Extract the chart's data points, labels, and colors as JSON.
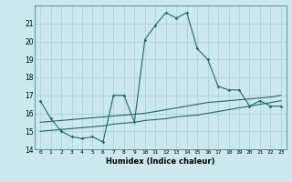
{
  "title": "",
  "xlabel": "Humidex (Indice chaleur)",
  "ylabel": "",
  "background_color": "#cce8ec",
  "grid_color": "#aacdd4",
  "line_color": "#1a6b6b",
  "xlim": [
    -0.5,
    23.5
  ],
  "ylim": [
    14,
    22
  ],
  "yticks": [
    14,
    15,
    16,
    17,
    18,
    19,
    20,
    21
  ],
  "xticks": [
    0,
    1,
    2,
    3,
    4,
    5,
    6,
    7,
    8,
    9,
    10,
    11,
    12,
    13,
    14,
    15,
    16,
    17,
    18,
    19,
    20,
    21,
    22,
    23
  ],
  "series1_x": [
    0,
    1,
    2,
    3,
    4,
    5,
    6,
    7,
    8,
    9,
    10,
    11,
    12,
    13,
    14,
    15,
    16,
    17,
    18,
    19,
    20,
    21,
    22,
    23
  ],
  "series1_y": [
    16.7,
    15.7,
    15.0,
    14.7,
    14.6,
    14.7,
    14.4,
    17.0,
    17.0,
    15.5,
    20.1,
    20.9,
    21.6,
    21.3,
    21.6,
    19.6,
    19.0,
    17.5,
    17.3,
    17.3,
    16.4,
    16.7,
    16.4,
    16.4
  ],
  "series2_x": [
    0,
    1,
    2,
    3,
    4,
    5,
    6,
    7,
    8,
    9,
    10,
    11,
    12,
    13,
    14,
    15,
    16,
    17,
    18,
    19,
    20,
    21,
    22,
    23
  ],
  "series2_y": [
    15.0,
    15.05,
    15.1,
    15.15,
    15.2,
    15.25,
    15.3,
    15.4,
    15.45,
    15.5,
    15.6,
    15.65,
    15.7,
    15.8,
    15.85,
    15.9,
    16.0,
    16.1,
    16.2,
    16.3,
    16.4,
    16.5,
    16.6,
    16.7
  ],
  "series3_x": [
    0,
    1,
    2,
    3,
    4,
    5,
    6,
    7,
    8,
    9,
    10,
    11,
    12,
    13,
    14,
    15,
    16,
    17,
    18,
    19,
    20,
    21,
    22,
    23
  ],
  "series3_y": [
    15.5,
    15.55,
    15.6,
    15.65,
    15.7,
    15.75,
    15.8,
    15.85,
    15.9,
    15.95,
    16.0,
    16.1,
    16.2,
    16.3,
    16.4,
    16.5,
    16.6,
    16.65,
    16.7,
    16.75,
    16.8,
    16.85,
    16.9,
    17.0
  ]
}
